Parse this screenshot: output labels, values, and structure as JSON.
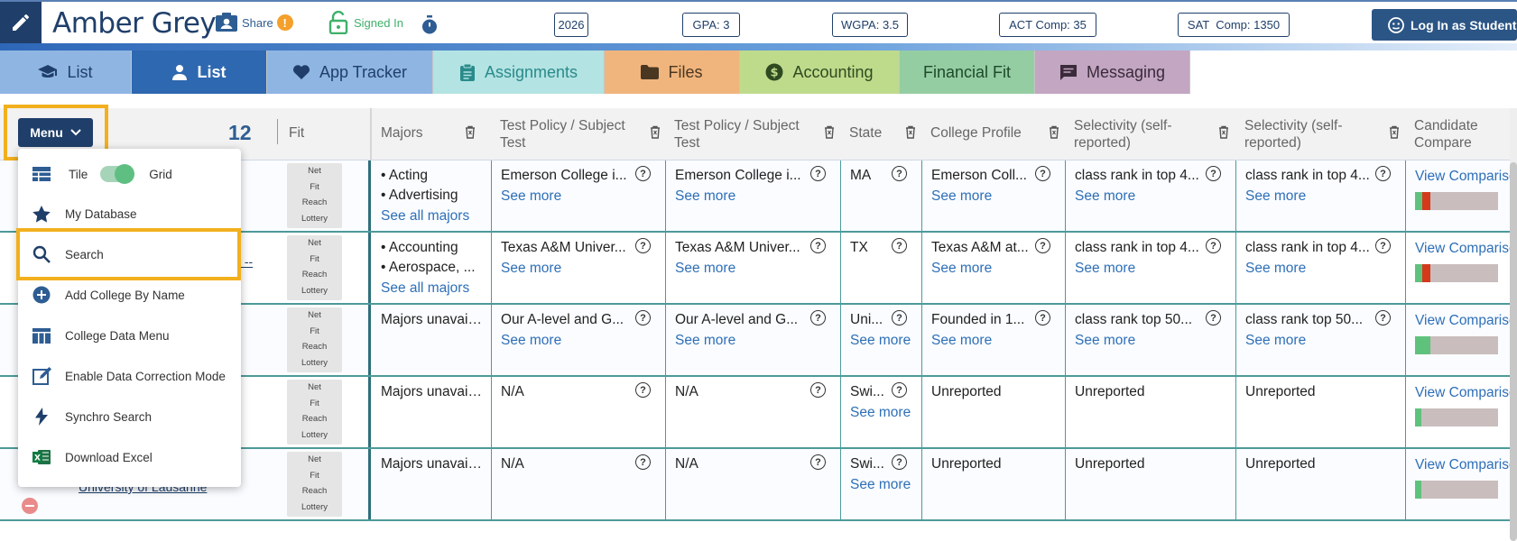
{
  "header": {
    "student_name": "Amber Grey",
    "share_label": "Share",
    "share_badge": "!",
    "signed_in_label": "Signed In",
    "stats": [
      "2026",
      "GPA: 3",
      "WGPA: 3.5",
      "ACT Comp: 35",
      "SAT  Comp: 1350"
    ],
    "login_button": "Log In as Student"
  },
  "tabs": [
    {
      "label": "List",
      "icon": "graduation-cap-icon",
      "bg": "#8fb5e2",
      "color": "#1f3f6a"
    },
    {
      "label": "List",
      "icon": "user-icon",
      "bg": "#2e68b0",
      "color": "#ffffff"
    },
    {
      "label": "App Tracker",
      "icon": "heart-icon",
      "bg": "#8fb5e2",
      "color": "#1f3f6a"
    },
    {
      "label": "Assignments",
      "icon": "clipboard-icon",
      "bg": "#b3e3e3",
      "color": "#2a8a8a"
    },
    {
      "label": "Files",
      "icon": "folder-icon",
      "bg": "#f0b57d",
      "color": "#4a3722"
    },
    {
      "label": "Accounting",
      "icon": "dollar-icon",
      "bg": "#bedb8c",
      "color": "#2f4a20"
    },
    {
      "label": "Financial Fit",
      "icon": "",
      "bg": "#95cda2",
      "color": "#1e4a2a"
    },
    {
      "label": "Messaging",
      "icon": "message-icon",
      "bg": "#c2a6c2",
      "color": "#3a2a3a"
    }
  ],
  "table": {
    "count": "12",
    "columns": [
      "Fit",
      "Majors",
      "Test Policy / Subject Test",
      "Test Policy / Subject Test",
      "State",
      "College Profile",
      "Selectivity (self-reported)",
      "Selectivity (self-reported)",
      "Candidate Compare"
    ],
    "fit_labels": [
      "Net",
      "Fit",
      "Reach",
      "Lottery"
    ],
    "see_more": "See more",
    "see_all_majors": "See all majors",
    "view_comparison": "View Comparison",
    "rows": [
      {
        "majors": [
          "• Acting",
          "• Advertising"
        ],
        "majors_link": true,
        "tp1": "Emerson College i...",
        "tp1_more": true,
        "tp2": "Emerson College i...",
        "tp2_more": true,
        "state": "MA",
        "state_more": false,
        "profile": "Emerson Coll...",
        "profile_more": true,
        "sel1": "class rank in top 4...",
        "sel1_more": true,
        "sel2": "class rank in top 4...",
        "sel2_more": true,
        "bar_green": 9,
        "bar_red": 10
      },
      {
        "majors": [
          "• Accounting",
          "• Aerospace, ..."
        ],
        "majors_link": true,
        "tp1": "Texas A&M Univer...",
        "tp1_more": true,
        "tp2": "Texas A&M Univer...",
        "tp2_more": true,
        "state": "TX",
        "state_more": false,
        "profile": "Texas A&M at...",
        "profile_more": true,
        "sel1": "class rank in top 4...",
        "sel1_more": true,
        "sel2": "class rank in top 4...",
        "sel2_more": true,
        "bar_green": 9,
        "bar_red": 10
      },
      {
        "majors": [
          "Majors unavailab"
        ],
        "majors_link": false,
        "tp1": "Our A-level and G...",
        "tp1_more": true,
        "tp2": "Our A-level and G...",
        "tp2_more": true,
        "state": "Uni...",
        "state_more": true,
        "profile": "Founded in 1...",
        "profile_more": true,
        "sel1": "class rank top 50...",
        "sel1_more": true,
        "sel2": "class rank top 50...",
        "sel2_more": true,
        "bar_green": 19,
        "bar_red": 0
      },
      {
        "majors": [
          "Majors unavailab"
        ],
        "majors_link": false,
        "tp1": "N/A",
        "tp1_more": false,
        "tp2": "N/A",
        "tp2_more": false,
        "state": "Swi...",
        "state_more": true,
        "profile": "Unreported",
        "profile_more": false,
        "sel1": "Unreported",
        "sel1_more": false,
        "sel2": "Unreported",
        "sel2_more": false,
        "bar_green": 8,
        "bar_red": 0
      },
      {
        "majors": [
          "Majors unavailab"
        ],
        "majors_link": false,
        "tp1": "N/A",
        "tp1_more": false,
        "tp2": "N/A",
        "tp2_more": false,
        "state": "Swi...",
        "state_more": true,
        "profile": "Unreported",
        "profile_more": false,
        "sel1": "Unreported",
        "sel1_more": false,
        "sel2": "Unreported",
        "sel2_more": false,
        "bar_green": 8,
        "bar_red": 0
      }
    ],
    "row_link_fragments": [
      "y --",
      "r",
      "University of Lausanne"
    ]
  },
  "menu": {
    "button_label": "Menu",
    "items": [
      {
        "label": "Tile",
        "label2": "Grid",
        "icon": "tile-icon",
        "toggle": true
      },
      {
        "label": "My Database",
        "icon": "star-icon"
      },
      {
        "label": "Search",
        "icon": "search-icon"
      },
      {
        "label": "Add College By Name",
        "icon": "plus-circle-icon"
      },
      {
        "label": "College Data Menu",
        "icon": "table-icon"
      },
      {
        "label": "Enable Data Correction Mode",
        "icon": "edit-box-icon"
      },
      {
        "label": "Synchro Search",
        "icon": "lightning-icon"
      },
      {
        "label": "Download Excel",
        "icon": "excel-icon"
      }
    ]
  }
}
